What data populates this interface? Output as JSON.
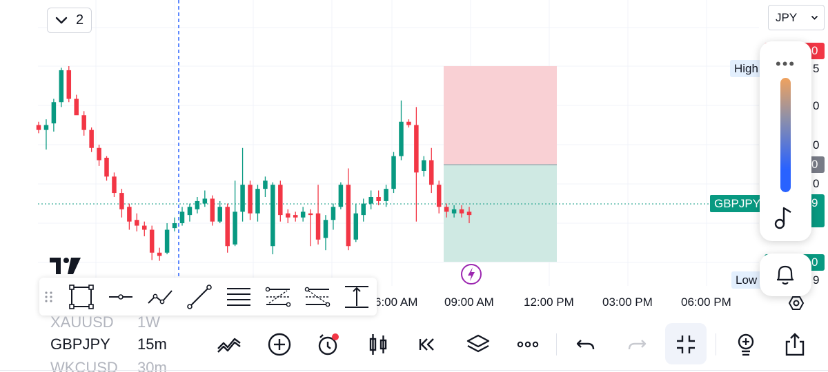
{
  "header": {
    "collapse_count": "2",
    "currency": "JPY"
  },
  "price_scale": {
    "high_tag": "High",
    "low_tag": "Low",
    "symbol_tag": "GBPJPY",
    "partial_labels": [
      "0",
      "5",
      "0",
      "0",
      "0",
      "0",
      "9",
      "0",
      "9"
    ]
  },
  "time_axis": [
    "6:00 AM",
    "09:00 AM",
    "12:00 PM",
    "03:00 PM",
    "06:00 PM"
  ],
  "watchlist": [
    {
      "symbol": "XAUUSD",
      "interval": "1W",
      "state": "faded"
    },
    {
      "symbol": "GBPJPY",
      "interval": "15m",
      "state": "active"
    },
    {
      "symbol": "WKCUSD",
      "interval": "30m",
      "state": "faded"
    }
  ],
  "drawing_tools": [
    "drag-handle-icon",
    "rectangle-icon",
    "horizontal-line-icon",
    "path-icon",
    "trend-line-icon",
    "parallel-lines-icon",
    "fib-channel-icon",
    "fib-retracement-icon",
    "price-range-icon"
  ],
  "bottom_toolbar": [
    "indicators-icon",
    "add-icon",
    "alert-icon",
    "chart-type-icon",
    "replay-icon",
    "layers-icon",
    "more-icon",
    "undo-icon",
    "redo-icon",
    "fullscreen-exit-icon",
    "ideas-icon",
    "share-icon"
  ],
  "colors": {
    "up": "#089981",
    "down": "#f23645",
    "accent": "#2962ff",
    "stop_zone": "#f9d0d4",
    "target_zone": "#cfe9e3"
  },
  "chart_data": {
    "type": "candlestick",
    "symbol": "GBPJPY",
    "interval": "15m",
    "x": [
      "6:00 AM",
      "09:00 AM",
      "12:00 PM",
      "03:00 PM",
      "06:00 PM"
    ],
    "series": [
      {
        "values": [
          [
            268,
            262,
            258,
            272
          ],
          [
            262,
            268,
            238,
            275
          ],
          [
            270,
            296,
            260,
            300
          ],
          [
            296,
            335,
            290,
            338
          ],
          [
            335,
            300,
            296,
            340
          ],
          [
            300,
            280,
            292,
            305
          ],
          [
            280,
            262,
            255,
            285
          ],
          [
            262,
            240,
            235,
            265
          ],
          [
            240,
            225,
            218,
            244
          ],
          [
            228,
            205,
            200,
            230
          ],
          [
            205,
            185,
            180,
            210
          ],
          [
            185,
            165,
            155,
            190
          ],
          [
            168,
            150,
            140,
            172
          ],
          [
            152,
            145,
            138,
            160
          ],
          [
            145,
            140,
            132,
            150
          ],
          [
            140,
            112,
            103,
            145
          ],
          [
            112,
            108,
            102,
            118
          ],
          [
            112,
            140,
            110,
            148
          ],
          [
            142,
            148,
            138,
            155
          ],
          [
            148,
            162,
            145,
            168
          ],
          [
            158,
            168,
            150,
            172
          ],
          [
            165,
            175,
            160,
            180
          ],
          [
            172,
            178,
            168,
            188
          ],
          [
            178,
            150,
            145,
            182
          ],
          [
            150,
            168,
            148,
            175
          ],
          [
            168,
            120,
            112,
            172
          ],
          [
            122,
            162,
            120,
            200
          ],
          [
            162,
            195,
            150,
            240
          ],
          [
            195,
            160,
            152,
            200
          ],
          [
            160,
            190,
            150,
            195
          ],
          [
            190,
            200,
            180,
            205
          ],
          [
            120,
            195,
            110,
            198
          ],
          [
            195,
            158,
            150,
            200
          ],
          [
            160,
            155,
            148,
            165
          ],
          [
            158,
            155,
            150,
            162
          ],
          [
            155,
            162,
            150,
            168
          ],
          [
            160,
            158,
            120,
            165
          ],
          [
            160,
            128,
            122,
            195
          ],
          [
            130,
            152,
            115,
            158
          ],
          [
            152,
            168,
            140,
            172
          ],
          [
            168,
            195,
            165,
            198
          ],
          [
            195,
            120,
            115,
            215
          ],
          [
            128,
            160,
            125,
            172
          ],
          [
            158,
            172,
            150,
            178
          ],
          [
            172,
            180,
            165,
            188
          ],
          [
            180,
            175,
            170,
            188
          ],
          [
            175,
            190,
            168,
            195
          ],
          [
            190,
            230,
            185,
            235
          ],
          [
            230,
            272,
            225,
            298
          ],
          [
            272,
            268,
            265,
            275
          ],
          [
            268,
            210,
            150,
            290
          ],
          [
            212,
            225,
            205,
            230
          ],
          [
            225,
            195,
            185,
            240
          ],
          [
            195,
            168,
            160,
            200
          ],
          [
            168,
            162,
            155,
            172
          ],
          [
            160,
            165,
            155,
            170
          ],
          [
            165,
            160,
            155,
            170
          ],
          [
            162,
            158,
            148,
            168
          ]
        ]
      }
    ],
    "position_tool": {
      "type": "long",
      "entry_level": "mid",
      "stop_zone": "upper",
      "target_zone": "lower"
    },
    "grid": true
  }
}
